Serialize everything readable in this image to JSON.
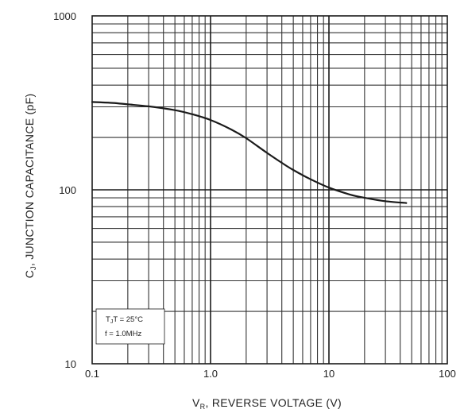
{
  "chart_data": {
    "type": "line",
    "title": "",
    "xlabel": {
      "symbol": "V",
      "subscript": "R",
      "text": ", REVERSE VOLTAGE (V)"
    },
    "ylabel": {
      "symbol": "C",
      "subscript": "J",
      "text": ", JUNCTION CAPACITANCE (pF)"
    },
    "x_scale": "log",
    "y_scale": "log",
    "xlim": [
      0.1,
      100
    ],
    "ylim": [
      10,
      1000
    ],
    "x_tick_labels": [
      "0.1",
      "1.0",
      "10",
      "100"
    ],
    "y_tick_labels": [
      "10",
      "100",
      "1000"
    ],
    "grid": true,
    "annotation": {
      "line1": "T = 25°C",
      "line1_subscript": "J",
      "line2": "f = 1.0MHz"
    },
    "series": [
      {
        "color": "#1a1a1a",
        "x": [
          0.1,
          0.15,
          0.2,
          0.3,
          0.5,
          0.7,
          1.0,
          1.5,
          2.0,
          3.0,
          4.0,
          5.0,
          7.0,
          10.0,
          15.0,
          20.0,
          30.0,
          45.0
        ],
        "y": [
          320,
          316,
          310,
          302,
          287,
          272,
          252,
          222,
          198,
          163,
          143,
          130,
          115,
          103,
          94,
          90,
          86,
          84
        ]
      }
    ]
  }
}
